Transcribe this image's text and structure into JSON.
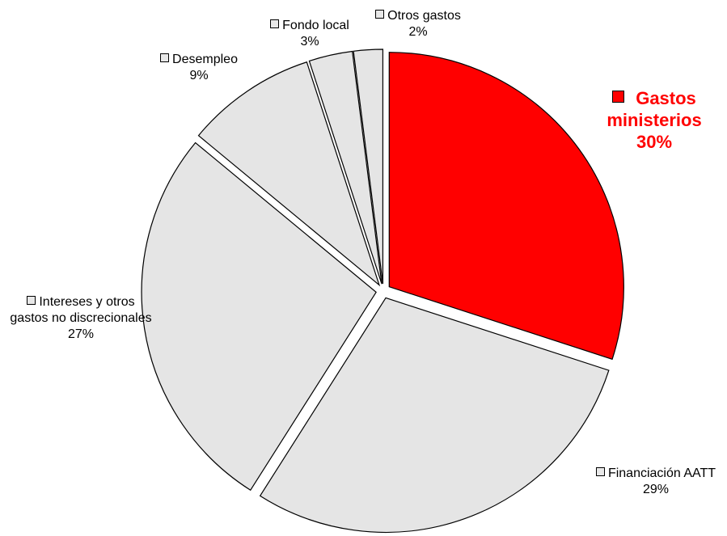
{
  "chart_data": {
    "type": "pie",
    "title": "",
    "start_angle_deg": 0,
    "direction": "clockwise",
    "slices": [
      {
        "name": "Gastos ministerios",
        "value": 30,
        "label": "30%",
        "color": "#ff0000",
        "text_color": "#ff0000",
        "highlight": true
      },
      {
        "name": "Financiación AATT",
        "value": 29,
        "label": "29%",
        "color": "#e5e5e5",
        "text_color": "#000000"
      },
      {
        "name": "Intereses y otros gastos no discrecionales",
        "value": 27,
        "label": "27%",
        "color": "#e5e5e5",
        "text_color": "#000000"
      },
      {
        "name": "Desempleo",
        "value": 9,
        "label": "9%",
        "color": "#e5e5e5",
        "text_color": "#000000"
      },
      {
        "name": "Fondo local",
        "value": 3,
        "label": "3%",
        "color": "#e5e5e5",
        "text_color": "#000000"
      },
      {
        "name": "Otros gastos",
        "value": 2,
        "label": "2%",
        "color": "#e5e5e5",
        "text_color": "#000000"
      }
    ]
  }
}
